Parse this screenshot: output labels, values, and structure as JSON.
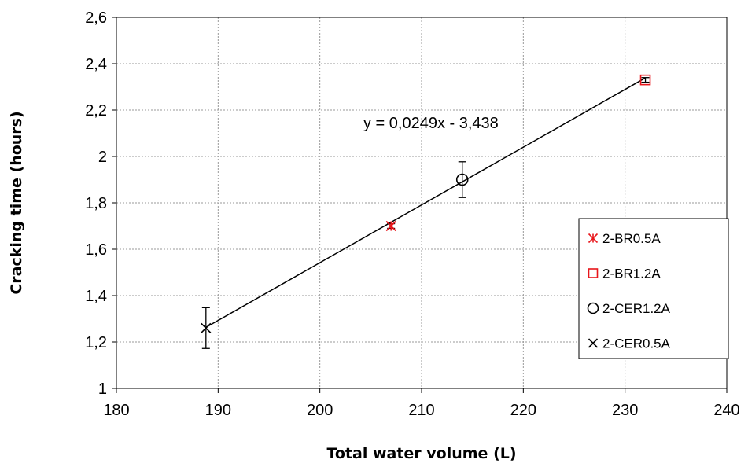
{
  "chart_data": {
    "type": "scatter",
    "xlabel": "Total water volume (L)",
    "ylabel": "Cracking time  (hours)",
    "xlim": [
      180,
      240
    ],
    "ylim": [
      1,
      2.6
    ],
    "x_ticks": [
      180,
      190,
      200,
      210,
      220,
      230,
      240
    ],
    "y_ticks": [
      1,
      1.2,
      1.4,
      1.6,
      1.8,
      2,
      2.2,
      2.4,
      2.6
    ],
    "x_tick_labels": [
      "180",
      "190",
      "200",
      "210",
      "220",
      "230",
      "240"
    ],
    "y_tick_labels": [
      "1",
      "1,2",
      "1,4",
      "1,6",
      "1,8",
      "2",
      "2,2",
      "2,4",
      "2,6"
    ],
    "grid": true,
    "legend_position": "right",
    "series": [
      {
        "name": "2-BR0.5A",
        "marker": "asterisk",
        "color": "#e8161b",
        "x": [
          207
        ],
        "y": [
          1.7
        ],
        "error": [
          0.01
        ]
      },
      {
        "name": "2-BR1.2A",
        "marker": "square",
        "color": "#e8161b",
        "x": [
          232
        ],
        "y": [
          2.33
        ],
        "error": [
          0.01
        ]
      },
      {
        "name": "2-CER1.2A",
        "marker": "circle",
        "color": "#000000",
        "x": [
          214
        ],
        "y": [
          1.9
        ],
        "error": [
          0.077
        ]
      },
      {
        "name": "2-CER0.5A",
        "marker": "x",
        "color": "#000000",
        "x": [
          188.8
        ],
        "y": [
          1.26
        ],
        "error": [
          0.088
        ]
      }
    ],
    "trendline": {
      "equation": "y = 0,0249x - 3,438",
      "slope": 0.0249,
      "intercept": -3.438,
      "x_range": [
        188.8,
        232
      ]
    }
  }
}
